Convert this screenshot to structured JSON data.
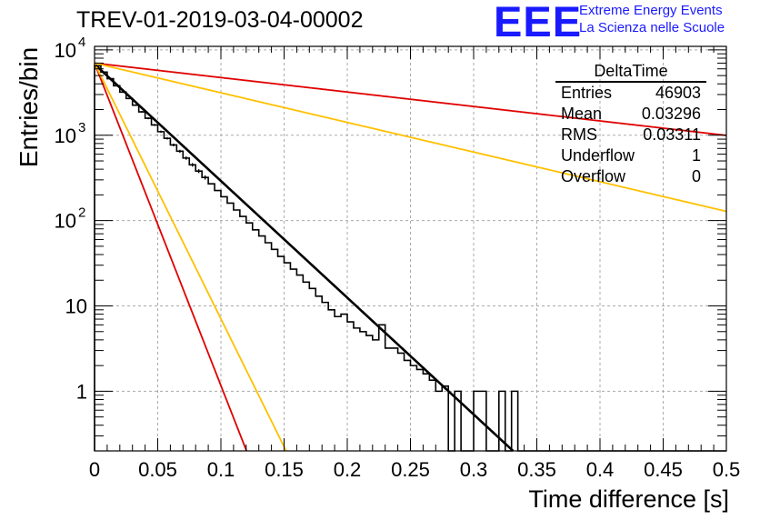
{
  "header": {
    "title": "TREV-01-2019-03-04-00002",
    "logo_text": "EEE",
    "logo_line1": "Extreme Energy Events",
    "logo_line2": "La Scienza nelle Scuole"
  },
  "stats": {
    "title": "DeltaTime",
    "rows": [
      {
        "label": "Entries",
        "value": "46903"
      },
      {
        "label": "Mean",
        "value": "0.03296"
      },
      {
        "label": "RMS",
        "value": "0.03311"
      },
      {
        "label": "Underflow",
        "value": "1"
      },
      {
        "label": "Overflow",
        "value": "0"
      }
    ]
  },
  "colors": {
    "histogram": "#000000",
    "fit": "#000000",
    "red": "#e00000",
    "orange": "#ffc000",
    "grid": "#aaaaaa"
  },
  "chart_data": {
    "type": "line",
    "xlabel": "Time difference [s]",
    "ylabel": "Entries/bin",
    "xlim": [
      0,
      0.5
    ],
    "ylim": [
      0.2,
      11000
    ],
    "y_scale": "log",
    "grid": true,
    "x_ticks": [
      "0",
      "0.05",
      "0.1",
      "0.15",
      "0.2",
      "0.25",
      "0.3",
      "0.35",
      "0.4",
      "0.45",
      "0.5"
    ],
    "y_ticks": [
      {
        "value": 1,
        "label": "1"
      },
      {
        "value": 10,
        "label": "10"
      },
      {
        "value": 100,
        "label": "10",
        "exp": "2"
      },
      {
        "value": 1000,
        "label": "10",
        "exp": "3"
      },
      {
        "value": 10000,
        "label": "10",
        "exp": "4"
      }
    ],
    "histogram": {
      "bin_width": 0.005,
      "values": [
        6500,
        5500,
        4600,
        3800,
        3200,
        2700,
        2250,
        1880,
        1580,
        1320,
        1100,
        920,
        770,
        650,
        540,
        450,
        380,
        320,
        270,
        225,
        190,
        160,
        133,
        112,
        94,
        78,
        66,
        55,
        46,
        38,
        32,
        27,
        23,
        19,
        16,
        13,
        11,
        9,
        7.5,
        8,
        6.5,
        5.5,
        5,
        4.5,
        4,
        6,
        3.2,
        3.2,
        2.8,
        2.3,
        2,
        1.8,
        1.6,
        1.35,
        1,
        1.15,
        0,
        1,
        0,
        0,
        1,
        1,
        0,
        0,
        1,
        0,
        1,
        0,
        0,
        0,
        0,
        0,
        0,
        0,
        0,
        0,
        0,
        0,
        0,
        0,
        0,
        0,
        0,
        0,
        0,
        0,
        0,
        0,
        0,
        0,
        0,
        0,
        0,
        0,
        0,
        0,
        0,
        0,
        0,
        0
      ]
    },
    "series": [
      {
        "kind": "fit",
        "color": "black",
        "a": 6800,
        "rate": 31.5
      },
      {
        "kind": "bound",
        "color": "red",
        "a": 7000,
        "rate": 3.9
      },
      {
        "kind": "bound",
        "color": "orange",
        "a": 7000,
        "rate": 8.0
      },
      {
        "kind": "bound",
        "color": "red",
        "a": 7000,
        "rate": 87
      },
      {
        "kind": "bound",
        "color": "orange",
        "a": 7000,
        "rate": 69
      }
    ]
  }
}
